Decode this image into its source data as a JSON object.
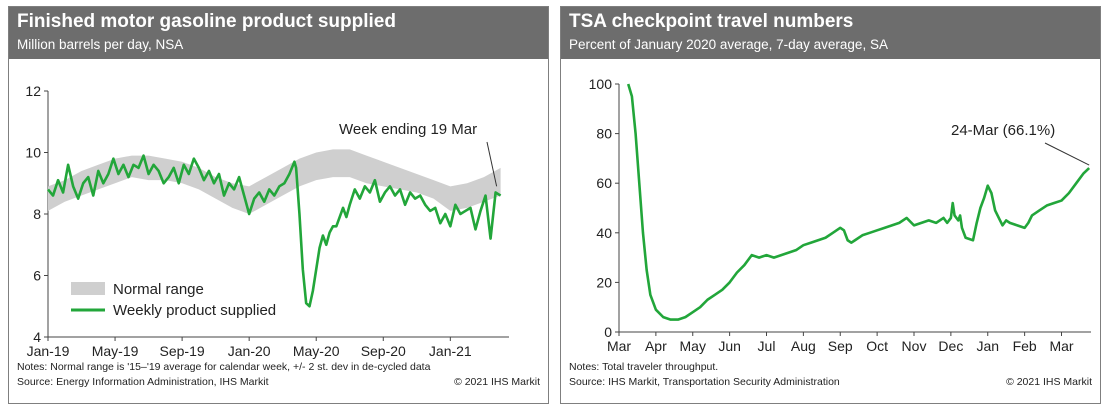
{
  "colors": {
    "header_bg": "#6d6d6d",
    "line": "#22a63a",
    "band": "#cfcfcf"
  },
  "chart_data": [
    {
      "type": "line",
      "title": "Finished motor gasoline product supplied",
      "subtitle": "Million barrels per day, NSA",
      "ylim": [
        4,
        12
      ],
      "yticks": [
        "4",
        "6",
        "8",
        "10",
        "12"
      ],
      "xlim": [
        0,
        27.5
      ],
      "xticks": [
        {
          "label": "Jan-19",
          "x": 0
        },
        {
          "label": "May-19",
          "x": 4
        },
        {
          "label": "Sep-19",
          "x": 8
        },
        {
          "label": "Jan-20",
          "x": 12
        },
        {
          "label": "May-20",
          "x": 16
        },
        {
          "label": "Sep-20",
          "x": 20
        },
        {
          "label": "Jan-21",
          "x": 24
        }
      ],
      "annotation": "Week ending 19 Mar",
      "legend": [
        "Normal range",
        "Weekly product supplied"
      ],
      "notes": "Notes: Normal range is '15–'19 average for calendar week, +/- 2 st. dev in de-cycled data",
      "source": "Source: Energy Information Administration, IHS Markit",
      "copyright": "© 2021 IHS Markit",
      "normal_range": {
        "x": [
          0.0,
          1.0,
          2.0,
          3.0,
          4.0,
          5.0,
          6.0,
          7.0,
          8.0,
          9.0,
          10.0,
          11.0,
          12.0,
          13.0,
          14.0,
          15.0,
          16.0,
          17.0,
          18.0,
          19.0,
          20.0,
          21.0,
          22.0,
          23.0,
          24.0,
          25.0,
          26.0,
          27.0
        ],
        "lower": [
          8.1,
          8.4,
          8.6,
          8.8,
          9.0,
          9.2,
          9.1,
          9.1,
          9.0,
          8.8,
          8.5,
          8.2,
          8.0,
          8.3,
          8.6,
          8.9,
          9.1,
          9.2,
          9.2,
          9.0,
          8.9,
          8.8,
          8.7,
          8.5,
          8.1,
          8.2,
          8.4,
          8.6
        ],
        "upper": [
          8.9,
          9.1,
          9.4,
          9.6,
          9.8,
          9.9,
          9.9,
          9.8,
          9.7,
          9.5,
          9.2,
          9.0,
          8.9,
          9.2,
          9.5,
          9.8,
          10.0,
          10.1,
          10.1,
          9.9,
          9.7,
          9.5,
          9.3,
          9.1,
          8.9,
          9.0,
          9.2,
          9.5
        ]
      },
      "series": [
        {
          "name": "Weekly product supplied",
          "x": [
            0.0,
            0.3,
            0.6,
            0.9,
            1.2,
            1.5,
            1.8,
            2.1,
            2.4,
            2.7,
            3.0,
            3.3,
            3.6,
            3.9,
            4.2,
            4.5,
            4.8,
            5.1,
            5.4,
            5.7,
            6.0,
            6.3,
            6.6,
            6.9,
            7.2,
            7.5,
            7.8,
            8.1,
            8.4,
            8.7,
            9.0,
            9.3,
            9.6,
            9.9,
            10.2,
            10.5,
            10.8,
            11.1,
            11.4,
            11.7,
            12.0,
            12.3,
            12.6,
            12.9,
            13.2,
            13.5,
            13.8,
            14.1,
            14.4,
            14.7,
            14.8,
            15.0,
            15.2,
            15.4,
            15.6,
            15.8,
            16.0,
            16.2,
            16.4,
            16.6,
            16.8,
            17.0,
            17.2,
            17.4,
            17.6,
            17.8,
            18.0,
            18.3,
            18.6,
            18.9,
            19.2,
            19.5,
            19.8,
            20.1,
            20.4,
            20.7,
            21.0,
            21.3,
            21.6,
            21.9,
            22.2,
            22.5,
            22.8,
            23.1,
            23.4,
            23.7,
            24.0,
            24.3,
            24.6,
            24.9,
            25.2,
            25.5,
            25.8,
            26.1,
            26.4,
            26.7,
            27.0
          ],
          "values": [
            8.8,
            8.6,
            9.1,
            8.7,
            9.6,
            8.9,
            8.5,
            9.0,
            9.2,
            8.6,
            9.4,
            9.0,
            9.3,
            9.8,
            9.3,
            9.6,
            9.2,
            9.6,
            9.5,
            9.9,
            9.3,
            9.6,
            9.4,
            9.0,
            9.2,
            9.5,
            9.0,
            9.6,
            9.3,
            9.8,
            9.5,
            9.1,
            9.4,
            9.0,
            9.3,
            8.6,
            9.0,
            8.8,
            9.2,
            8.6,
            8.0,
            8.5,
            8.7,
            8.4,
            8.8,
            8.6,
            8.9,
            9.0,
            9.3,
            9.7,
            9.5,
            8.0,
            6.2,
            5.1,
            5.0,
            5.5,
            6.2,
            6.9,
            7.3,
            7.0,
            7.4,
            7.6,
            7.6,
            7.9,
            8.2,
            7.9,
            8.3,
            8.8,
            8.5,
            8.9,
            8.7,
            9.1,
            8.4,
            8.7,
            8.9,
            8.6,
            8.8,
            8.3,
            8.7,
            8.5,
            8.6,
            8.3,
            8.1,
            8.2,
            7.7,
            8.0,
            7.6,
            8.3,
            8.0,
            8.1,
            8.2,
            7.5,
            8.1,
            8.6,
            7.2,
            8.7,
            8.6
          ]
        }
      ]
    },
    {
      "type": "line",
      "title": "TSA checkpoint travel numbers",
      "subtitle": "Percent of January 2020 average, 7-day average, SA",
      "ylim": [
        0,
        100
      ],
      "yticks": [
        "0",
        "20",
        "40",
        "60",
        "80",
        "100"
      ],
      "xlim": [
        0,
        12.8
      ],
      "xticks": [
        {
          "label": "Mar",
          "x": 0
        },
        {
          "label": "Apr",
          "x": 1
        },
        {
          "label": "May",
          "x": 2
        },
        {
          "label": "Jun",
          "x": 3
        },
        {
          "label": "Jul",
          "x": 4
        },
        {
          "label": "Aug",
          "x": 5
        },
        {
          "label": "Sep",
          "x": 6
        },
        {
          "label": "Oct",
          "x": 7
        },
        {
          "label": "Nov",
          "x": 8
        },
        {
          "label": "Dec",
          "x": 9
        },
        {
          "label": "Jan",
          "x": 10
        },
        {
          "label": "Feb",
          "x": 11
        },
        {
          "label": "Mar",
          "x": 12
        }
      ],
      "annotation": "24-Mar (66.1%)",
      "notes": "Notes: Total traveler throughput.",
      "source": "Source: IHS Markit, Transportation Security Administration",
      "copyright": "© 2021 IHS Markit",
      "series": [
        {
          "name": "TSA travel",
          "x": [
            0.25,
            0.35,
            0.45,
            0.55,
            0.65,
            0.75,
            0.85,
            1.0,
            1.2,
            1.4,
            1.6,
            1.8,
            2.0,
            2.2,
            2.4,
            2.6,
            2.8,
            3.0,
            3.2,
            3.4,
            3.6,
            3.8,
            4.0,
            4.2,
            4.4,
            4.6,
            4.8,
            5.0,
            5.2,
            5.4,
            5.6,
            5.8,
            6.0,
            6.1,
            6.2,
            6.3,
            6.4,
            6.6,
            6.8,
            7.0,
            7.2,
            7.4,
            7.6,
            7.8,
            8.0,
            8.2,
            8.4,
            8.6,
            8.8,
            8.9,
            9.0,
            9.05,
            9.1,
            9.2,
            9.25,
            9.3,
            9.4,
            9.6,
            9.7,
            9.8,
            9.9,
            10.0,
            10.1,
            10.2,
            10.3,
            10.4,
            10.5,
            10.6,
            10.8,
            11.0,
            11.1,
            11.2,
            11.4,
            11.6,
            11.8,
            12.0,
            12.2,
            12.4,
            12.6,
            12.75
          ],
          "values": [
            100,
            95,
            80,
            60,
            40,
            25,
            15,
            9,
            6,
            5,
            5,
            6,
            8,
            10,
            13,
            15,
            17,
            20,
            24,
            27,
            31,
            30,
            31,
            30,
            31,
            32,
            33,
            35,
            36,
            37,
            38,
            40,
            42,
            41,
            37,
            36,
            37,
            39,
            40,
            41,
            42,
            43,
            44,
            46,
            43,
            44,
            45,
            44,
            46,
            44,
            46,
            52,
            47,
            45,
            47,
            42,
            38,
            37,
            44,
            50,
            54,
            59,
            56,
            49,
            46,
            43,
            45,
            44,
            43,
            42,
            44,
            47,
            49,
            51,
            52,
            53,
            56,
            60,
            64,
            66.1
          ]
        }
      ]
    }
  ]
}
